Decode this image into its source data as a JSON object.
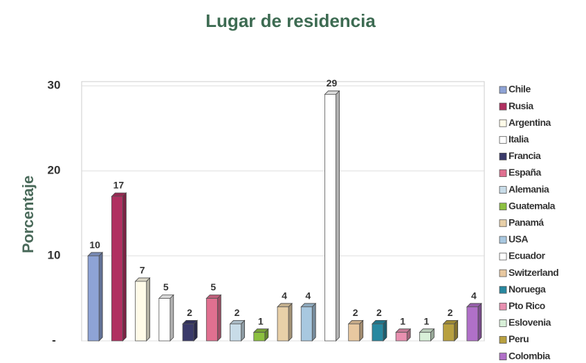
{
  "chart_data": {
    "type": "bar",
    "title": "Lugar de residencia",
    "y_label": "Porcentaje",
    "categories": [
      "Chile",
      "Rusia",
      "Argentina",
      "Italia",
      "Francia",
      "España",
      "Alemania",
      "Guatemala",
      "Panamá",
      "USA",
      "Ecuador",
      "Switzerland",
      "Noruega",
      "Pto Rico",
      "Eslovenia",
      "Peru",
      "Colombia"
    ],
    "values": [
      10,
      17,
      7,
      5,
      2,
      5,
      2,
      1,
      4,
      4,
      29,
      2,
      2,
      1,
      1,
      2,
      4
    ],
    "colors": [
      "#8ea3d6",
      "#b03060",
      "#fffbe8",
      "#ffffff",
      "#3a3a6a",
      "#e07090",
      "#c8dce8",
      "#8cc040",
      "#e8d0a8",
      "#a8c8e0",
      "#ffffff",
      "#e8c8a0",
      "#2888a0",
      "#e890b0",
      "#d8f0d8",
      "#b8a040",
      "#b070c8"
    ],
    "ylim": [
      0,
      30.5
    ],
    "yticks": [
      {
        "value": 0,
        "label": "-"
      },
      10,
      20,
      30
    ],
    "grid": true,
    "legend": "right"
  }
}
